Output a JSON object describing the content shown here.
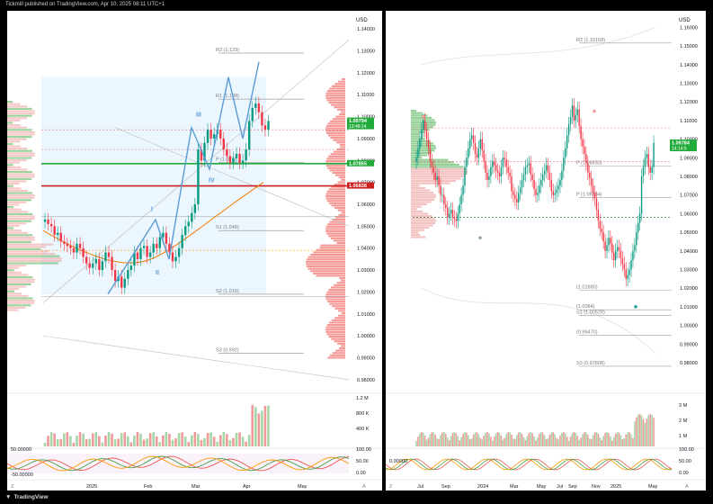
{
  "header": {
    "published_by": "Tickmill published on TradingView.com, Apr 10, 2025 08:11 UTC+1"
  },
  "footer": {
    "brand": "TradingView"
  },
  "colors": {
    "bull": "#089981",
    "bear": "#f23645",
    "accent_green": "#22ab3b",
    "accent_red": "#cc1f1f",
    "wave": "#5b9bd5",
    "pane_bg": "#ffffff"
  },
  "left_pane": {
    "currency": "USD",
    "price_ticks": [
      "1.14000",
      "1.13000",
      "1.12000",
      "1.11000",
      "1.10000",
      "1.09000",
      "1.08000",
      "1.07000",
      "1.06000",
      "1.05000",
      "1.04000",
      "1.03000",
      "1.02000",
      "1.01000",
      "1.00000",
      "0.99000",
      "0.98000"
    ],
    "badges": [
      {
        "text": "1.09794",
        "sub": "13:48:14",
        "color": "#22ab3b"
      },
      {
        "text": "1.07855",
        "sub": "",
        "color": "#22ab3b"
      },
      {
        "text": "1.06838",
        "sub": "",
        "color": "#cc1f1f"
      }
    ],
    "pivot_labels": [
      "R2 (1.129)",
      "R1 (1.108)",
      "P (1.079)",
      "S1 (1.048)",
      "S2 (1.019)",
      "S3 (0.992)"
    ],
    "wave_labels": [
      "I",
      "II",
      "III",
      "IV"
    ],
    "time_ticks": [
      "2025",
      "Feb",
      "Mar",
      "Apr",
      "May"
    ],
    "volume_ticks": [
      "1.2 M",
      "800 K",
      "400 K"
    ],
    "osc_ticks": [
      "100.00",
      "50.00",
      "0.00"
    ],
    "osc_left_labels": [
      "50.00000",
      "-50.00000"
    ],
    "scale_label": "A",
    "z_label": "Z"
  },
  "right_pane": {
    "currency": "USD",
    "price_ticks": [
      "1.16000",
      "1.15000",
      "1.14000",
      "1.13000",
      "1.12000",
      "1.11000",
      "1.10000",
      "1.09000",
      "1.08000",
      "1.07000",
      "1.06000",
      "1.05000",
      "1.04000",
      "1.03000",
      "1.02000",
      "1.01000",
      "1.00000",
      "0.99000",
      "0.98000"
    ],
    "badges": [
      {
        "text": "1.09784",
        "sub": "14:14:6",
        "color": "#22ab3b"
      }
    ],
    "pivot_labels": [
      "R2 (1.15158)",
      "P (1.08553)",
      "P (1.06864)",
      "S1 (1.00529)",
      "(0.99470)",
      "S3 (0.97808)",
      "(1.0084)",
      "(1.01880)"
    ],
    "time_ticks": [
      "Jul",
      "Sep",
      "2024",
      "Mar",
      "May",
      "Jul",
      "Sep",
      "Nov",
      "2025",
      "May"
    ],
    "volume_ticks": [
      "3 M",
      "2 M",
      "1 M"
    ],
    "osc_ticks": [
      "100.00",
      "50.00",
      "0.00"
    ],
    "osc_left_labels": [
      "0.00000"
    ],
    "scale_label": "A",
    "z_label": "Z"
  },
  "chart_data": [
    {
      "type": "candlestick",
      "title": "",
      "xlabel": "",
      "ylabel": "USD",
      "x_range": [
        "2024-12-10",
        "2025-05-10"
      ],
      "ylim": [
        0.975,
        1.145
      ],
      "closes": [
        1.053,
        1.051,
        1.05,
        1.046,
        1.047,
        1.043,
        1.042,
        1.041,
        1.04,
        1.038,
        1.042,
        1.04,
        1.036,
        1.033,
        1.031,
        1.033,
        1.035,
        1.03,
        1.034,
        1.038,
        1.036,
        1.03,
        1.025,
        1.027,
        1.022,
        1.026,
        1.03,
        1.032,
        1.038,
        1.035,
        1.04,
        1.041,
        1.036,
        1.038,
        1.042,
        1.04,
        1.045,
        1.047,
        1.042,
        1.038,
        1.034,
        1.036,
        1.04,
        1.046,
        1.05,
        1.052,
        1.056,
        1.06,
        1.085,
        1.08,
        1.088,
        1.094,
        1.09,
        1.092,
        1.094,
        1.09,
        1.085,
        1.082,
        1.079,
        1.081,
        1.083,
        1.079,
        1.08,
        1.085,
        1.098,
        1.104,
        1.106,
        1.102,
        1.096,
        1.094,
        1.098
      ],
      "horizontal_levels": [
        1.07855,
        1.06838
      ],
      "pivots": {
        "R2": 1.129,
        "R1": 1.108,
        "P": 1.079,
        "S1": 1.048,
        "S2": 1.019,
        "S3": 0.992
      },
      "last_price": 1.09794
    },
    {
      "type": "candlestick",
      "title": "",
      "xlabel": "",
      "ylabel": "USD",
      "x_range": [
        "2023-06-15",
        "2025-05-15"
      ],
      "ylim": [
        0.965,
        1.165
      ],
      "closes": [
        1.09,
        1.095,
        1.1,
        1.105,
        1.11,
        1.105,
        1.1,
        1.095,
        1.088,
        1.085,
        1.082,
        1.078,
        1.08,
        1.075,
        1.07,
        1.07,
        1.065,
        1.063,
        1.058,
        1.06,
        1.062,
        1.058,
        1.057,
        1.056,
        1.06,
        1.065,
        1.07,
        1.075,
        1.085,
        1.09,
        1.095,
        1.1,
        1.102,
        1.098,
        1.092,
        1.09,
        1.095,
        1.1,
        1.094,
        1.088,
        1.082,
        1.078,
        1.08,
        1.085,
        1.088,
        1.086,
        1.083,
        1.082,
        1.08,
        1.085,
        1.09,
        1.089,
        1.085,
        1.082,
        1.08,
        1.072,
        1.07,
        1.068,
        1.066,
        1.071,
        1.074,
        1.078,
        1.081,
        1.085,
        1.086,
        1.087,
        1.081,
        1.078,
        1.073,
        1.07,
        1.071,
        1.075,
        1.078,
        1.081,
        1.083,
        1.086,
        1.082,
        1.078,
        1.072,
        1.07,
        1.071,
        1.073,
        1.075,
        1.078,
        1.083,
        1.09,
        1.095,
        1.102,
        1.108,
        1.112,
        1.118,
        1.11,
        1.113,
        1.116,
        1.107,
        1.1,
        1.096,
        1.092,
        1.087,
        1.082,
        1.079,
        1.075,
        1.071,
        1.068,
        1.062,
        1.056,
        1.052,
        1.05,
        1.045,
        1.04,
        1.043,
        1.047,
        1.044,
        1.039,
        1.035,
        1.04,
        1.042,
        1.04,
        1.036,
        1.033,
        1.03,
        1.025,
        1.027,
        1.03,
        1.035,
        1.04,
        1.043,
        1.05,
        1.055,
        1.06,
        1.08,
        1.085,
        1.09,
        1.092,
        1.085,
        1.082,
        1.085,
        1.098
      ],
      "pivots": {
        "R2": 1.15158,
        "P": 1.08553,
        "P_prev": 1.06864,
        "S1": 1.00529,
        "S3": 0.97808
      },
      "last_price": 1.09784
    }
  ]
}
